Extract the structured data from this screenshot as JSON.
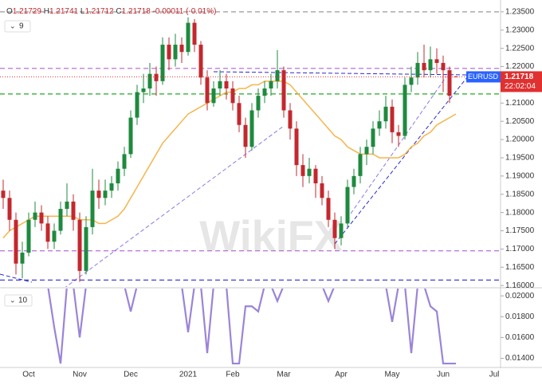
{
  "header": {
    "open": {
      "key": "O",
      "value": "1.21729"
    },
    "high": {
      "key": "H",
      "value": "1.21741"
    },
    "low": {
      "key": "L",
      "value": "1.21712"
    },
    "close": {
      "key": "C",
      "value": "1.21718"
    },
    "change": "-0.00011 (-0.01%)"
  },
  "price_tag": {
    "symbol": "EURUSD",
    "price": "1.21718",
    "time": "22:02:04"
  },
  "watermark": "WikiFX",
  "chart_data": [
    {
      "type": "candlestick",
      "indicator_label": "9",
      "up_color": "#1e8a3e",
      "down_color": "#c3282e",
      "categories": [
        null,
        null,
        null,
        null,
        "Oct",
        null,
        null,
        null,
        null,
        null,
        null,
        null,
        "Nov",
        null,
        null,
        null,
        null,
        null,
        null,
        null,
        "Dec",
        null,
        null,
        null,
        null,
        null,
        null,
        null,
        null,
        "2021",
        null,
        null,
        null,
        null,
        null,
        null,
        "Feb",
        null,
        null,
        null,
        null,
        null,
        null,
        null,
        "Mar",
        null,
        null,
        null,
        null,
        null,
        null,
        null,
        null,
        "Apr",
        null,
        null,
        null,
        null,
        null,
        null,
        null,
        "May",
        null,
        null,
        null,
        null,
        null,
        null,
        null,
        "Jun",
        null,
        null,
        null,
        null,
        null,
        null,
        null,
        "Jul"
      ],
      "open": [
        1.186,
        1.184,
        1.178,
        1.166,
        1.169,
        1.178,
        1.18,
        1.177,
        1.172,
        1.175,
        1.181,
        1.183,
        1.178,
        1.164,
        1.176,
        1.186,
        1.184,
        1.186,
        1.188,
        1.192,
        1.196,
        1.206,
        1.213,
        1.214,
        1.218,
        1.216,
        1.226,
        1.222,
        1.226,
        1.224,
        1.232,
        1.226,
        1.217,
        1.21,
        1.214,
        1.216,
        1.214,
        1.21,
        1.204,
        1.198,
        1.208,
        1.212,
        1.214,
        1.216,
        1.219,
        1.208,
        1.203,
        1.193,
        1.19,
        1.192,
        1.188,
        1.184,
        1.178,
        1.173,
        1.177,
        1.187,
        1.19,
        1.196,
        1.198,
        1.203,
        1.205,
        1.209,
        1.202,
        1.201,
        1.215,
        1.217,
        1.221,
        1.219,
        1.222,
        1.221,
        1.219,
        1.21729,
        null,
        null,
        null,
        null,
        null,
        null
      ],
      "high": [
        1.189,
        1.186,
        1.18,
        1.172,
        1.18,
        1.183,
        1.182,
        1.179,
        1.177,
        1.183,
        1.188,
        1.185,
        1.18,
        1.179,
        1.192,
        1.189,
        1.189,
        1.19,
        1.194,
        1.198,
        1.208,
        1.215,
        1.218,
        1.221,
        1.22,
        1.228,
        1.228,
        1.229,
        1.228,
        1.2335,
        1.233,
        1.227,
        1.219,
        1.216,
        1.219,
        1.218,
        1.216,
        1.212,
        1.206,
        1.21,
        1.214,
        1.216,
        1.218,
        1.2245,
        1.22,
        1.21,
        1.205,
        1.196,
        1.195,
        1.193,
        1.19,
        1.186,
        1.18,
        1.179,
        1.189,
        1.192,
        1.198,
        1.2,
        1.205,
        1.208,
        1.212,
        1.211,
        1.204,
        1.217,
        1.22,
        1.224,
        1.226,
        1.2255,
        1.225,
        1.223,
        1.22,
        1.21741,
        null,
        null,
        null,
        null,
        null,
        null
      ],
      "low": [
        1.181,
        1.175,
        1.163,
        1.162,
        1.168,
        1.176,
        1.175,
        1.17,
        1.17,
        1.174,
        1.179,
        1.175,
        1.161,
        1.163,
        1.174,
        1.181,
        1.182,
        1.184,
        1.186,
        1.19,
        1.195,
        1.204,
        1.21,
        1.212,
        1.212,
        1.215,
        1.219,
        1.22,
        1.221,
        1.223,
        1.224,
        1.215,
        1.208,
        1.209,
        1.212,
        1.211,
        1.208,
        1.202,
        1.195,
        1.197,
        1.206,
        1.21,
        1.212,
        1.214,
        1.206,
        1.2,
        1.19,
        1.187,
        1.188,
        1.184,
        1.182,
        1.176,
        1.17,
        1.171,
        1.176,
        1.185,
        1.188,
        1.193,
        1.196,
        1.201,
        1.203,
        1.199,
        1.198,
        1.2,
        1.213,
        1.215,
        1.217,
        1.217,
        1.218,
        1.213,
        1.21,
        1.21712,
        null,
        null,
        null,
        null,
        null,
        null
      ],
      "close": [
        1.184,
        1.178,
        1.166,
        1.169,
        1.178,
        1.18,
        1.177,
        1.172,
        1.175,
        1.181,
        1.183,
        1.178,
        1.164,
        1.176,
        1.186,
        1.184,
        1.186,
        1.188,
        1.192,
        1.196,
        1.206,
        1.213,
        1.214,
        1.218,
        1.216,
        1.226,
        1.222,
        1.226,
        1.224,
        1.232,
        1.226,
        1.217,
        1.21,
        1.214,
        1.216,
        1.214,
        1.21,
        1.204,
        1.198,
        1.208,
        1.212,
        1.214,
        1.216,
        1.219,
        1.208,
        1.203,
        1.193,
        1.19,
        1.192,
        1.188,
        1.184,
        1.178,
        1.173,
        1.177,
        1.187,
        1.19,
        1.196,
        1.198,
        1.203,
        1.205,
        1.209,
        1.202,
        1.201,
        1.215,
        1.217,
        1.221,
        1.219,
        1.222,
        1.221,
        1.219,
        1.212,
        1.21718,
        null,
        null,
        null,
        null,
        null,
        null
      ],
      "moving_average": {
        "color": "#f5b54a",
        "values": [
          1.173,
          1.175,
          1.176,
          1.177,
          1.178,
          1.179,
          1.179,
          1.179,
          1.179,
          1.179,
          1.179,
          1.179,
          1.178,
          1.178,
          1.178,
          1.177,
          1.177,
          1.178,
          1.179,
          1.181,
          1.184,
          1.187,
          1.19,
          1.193,
          1.196,
          1.199,
          1.201,
          1.203,
          1.205,
          1.207,
          1.208,
          1.209,
          1.21,
          1.211,
          1.212,
          1.213,
          1.213,
          1.214,
          1.214,
          1.215,
          1.215,
          1.216,
          1.216,
          1.216,
          1.216,
          1.215,
          1.213,
          1.211,
          1.209,
          1.207,
          1.205,
          1.203,
          1.201,
          1.2,
          1.198,
          1.197,
          1.196,
          1.196,
          1.196,
          1.195,
          1.195,
          1.195,
          1.195,
          1.196,
          1.198,
          1.199,
          1.201,
          1.202,
          1.204,
          1.205,
          1.206,
          1.207,
          null,
          null,
          null,
          null,
          null,
          null
        ]
      },
      "levels": [
        {
          "value": 1.235,
          "color": "#9a9a9a"
        },
        {
          "value": 1.2195,
          "color": "#b060d8"
        },
        {
          "value": 1.2125,
          "color": "#22aa22"
        },
        {
          "value": 1.1695,
          "color": "#b060d8"
        },
        {
          "value": 1.1615,
          "color": "#2a2acc"
        }
      ],
      "last_price_color": "#e03030",
      "ylim": [
        1.1596,
        1.2365
      ],
      "yticks": [
        {
          "value": 1.16,
          "label": "1.16000"
        },
        {
          "value": 1.165,
          "label": "1.16500"
        },
        {
          "value": 1.17,
          "label": "1.17000"
        },
        {
          "value": 1.175,
          "label": "1.17500"
        },
        {
          "value": 1.18,
          "label": "1.18000"
        },
        {
          "value": 1.185,
          "label": "1.18500"
        },
        {
          "value": 1.19,
          "label": "1.19000"
        },
        {
          "value": 1.195,
          "label": "1.19500"
        },
        {
          "value": 1.2,
          "label": "1.20000"
        },
        {
          "value": 1.205,
          "label": "1.20500"
        },
        {
          "value": 1.21,
          "label": "1.21000"
        },
        {
          "value": 1.215,
          "label": "1.21500"
        },
        {
          "value": 1.22,
          "label": "1.22000"
        },
        {
          "value": 1.225,
          "label": "1.22500"
        },
        {
          "value": 1.23,
          "label": "1.23000"
        },
        {
          "value": 1.235,
          "label": "1.23500"
        }
      ]
    },
    {
      "type": "line",
      "indicator_label": "10",
      "color": "#9b84d8",
      "values": [
        0.021,
        0.021,
        0.021,
        0.021,
        0.021,
        0.021,
        0.021,
        0.021,
        0.017,
        0.0135,
        0.021,
        0.021,
        0.016,
        0.021,
        0.021,
        0.021,
        0.021,
        0.021,
        0.021,
        0.021,
        0.0185,
        0.021,
        0.021,
        0.021,
        0.021,
        0.021,
        0.021,
        0.021,
        0.021,
        0.0165,
        0.021,
        0.021,
        0.0145,
        0.021,
        0.021,
        0.021,
        0.0135,
        0.0135,
        0.019,
        0.019,
        0.0185,
        0.021,
        0.021,
        0.0195,
        0.021,
        0.021,
        0.021,
        0.021,
        0.021,
        0.021,
        0.021,
        0.0195,
        0.021,
        0.021,
        0.021,
        0.021,
        0.021,
        0.021,
        0.021,
        0.021,
        0.021,
        0.0175,
        0.021,
        0.021,
        0.0145,
        0.021,
        0.021,
        0.019,
        0.0185,
        0.0135,
        0.0135,
        0.0135,
        null,
        null,
        null,
        null,
        null,
        null
      ],
      "ylim": [
        0.0132,
        0.0207
      ],
      "yticks": [
        {
          "value": 0.014,
          "label": "0.01400"
        },
        {
          "value": 0.016,
          "label": "0.01600"
        },
        {
          "value": 0.018,
          "label": "0.01800"
        },
        {
          "value": 0.02,
          "label": "0.02000"
        }
      ]
    }
  ]
}
